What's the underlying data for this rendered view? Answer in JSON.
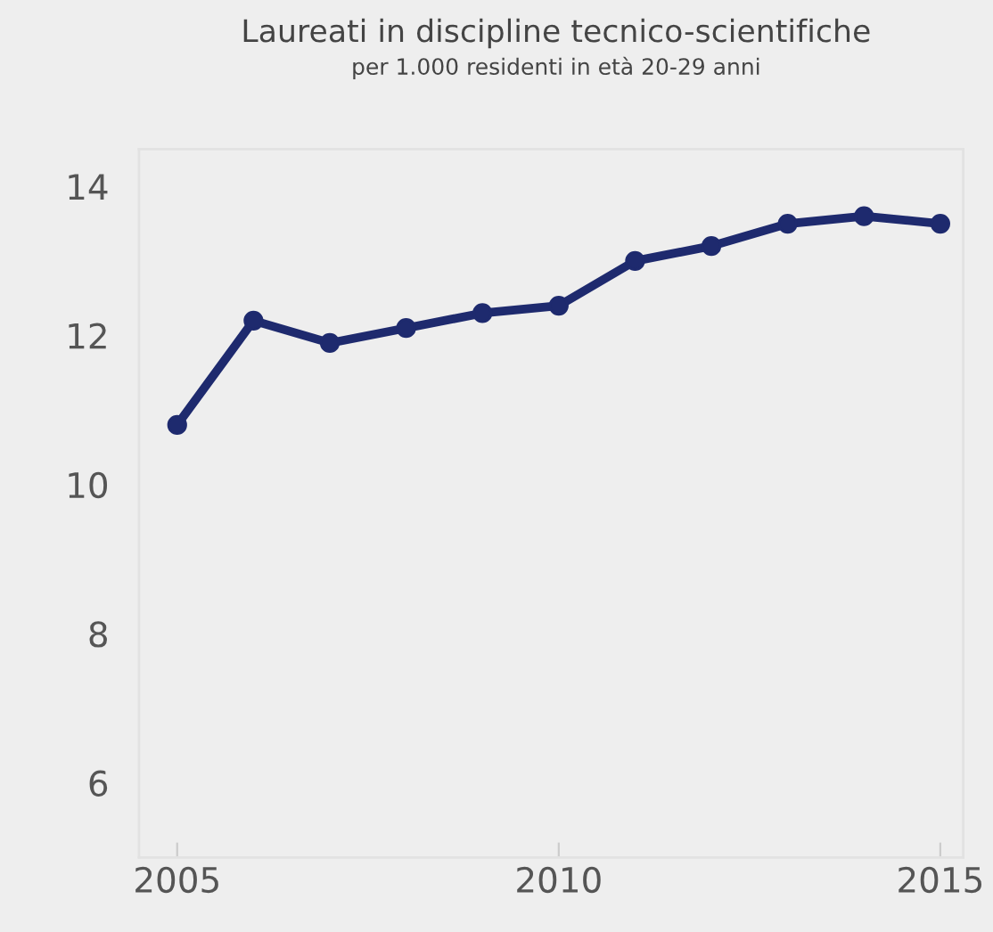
{
  "chart_data": {
    "type": "line",
    "title": "Laureati in discipline tecnico-scientifiche",
    "subtitle": "per 1.000 residenti in età 20-29 anni",
    "x": [
      2005,
      2006,
      2007,
      2008,
      2009,
      2010,
      2011,
      2012,
      2013,
      2014,
      2015
    ],
    "series": [
      {
        "color": "#1e2a6e",
        "values": [
          10.8,
          12.2,
          11.9,
          12.1,
          12.3,
          12.4,
          13.0,
          13.2,
          13.5,
          13.6,
          13.5
        ]
      }
    ],
    "xlim": [
      2004.5,
      2015.3
    ],
    "ylim": [
      5,
      14.5
    ],
    "xticks": [
      2005,
      2010,
      2015
    ],
    "yticks": [
      6,
      8,
      10,
      12,
      14
    ],
    "marker": "circle",
    "line_style": "solid",
    "grid": false,
    "legend": false
  }
}
